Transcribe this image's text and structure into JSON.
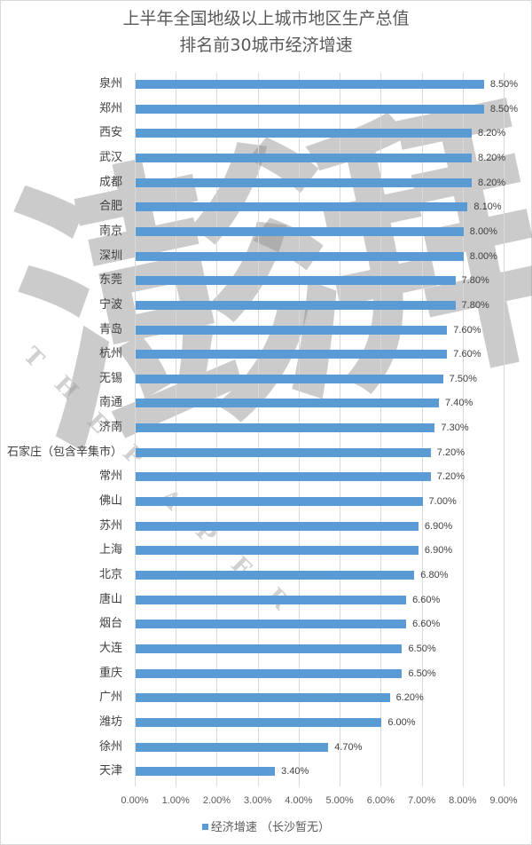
{
  "title": {
    "line1": "上半年全国地级以上城市地区生产总值",
    "line2": "排名前30城市经济增速"
  },
  "watermark": {
    "main": "澎湃",
    "letters": [
      "T",
      "H",
      "E",
      "P",
      "A",
      "P",
      "E",
      "R"
    ]
  },
  "legend": {
    "label": "经济增速  （长沙暂无）",
    "color": "#5b9bd5"
  },
  "chart_data": {
    "type": "bar",
    "orientation": "horizontal",
    "title": "上半年全国地级以上城市地区生产总值 排名前30城市经济增速",
    "xlabel": "",
    "ylabel": "",
    "xlim": [
      0,
      9
    ],
    "x_ticks": [
      "0.00%",
      "1.00%",
      "2.00%",
      "3.00%",
      "4.00%",
      "5.00%",
      "6.00%",
      "7.00%",
      "8.00%",
      "9.00%"
    ],
    "grid": true,
    "legend_position": "bottom",
    "series": [
      {
        "name": "经济增速  （长沙暂无）",
        "color": "#5b9bd5",
        "values": [
          8.5,
          8.5,
          8.2,
          8.2,
          8.2,
          8.1,
          8.0,
          8.0,
          7.8,
          7.8,
          7.6,
          7.6,
          7.5,
          7.4,
          7.3,
          7.2,
          7.2,
          7.0,
          6.9,
          6.9,
          6.8,
          6.6,
          6.6,
          6.5,
          6.5,
          6.2,
          6.0,
          4.7,
          3.4
        ]
      }
    ],
    "categories": [
      "泉州",
      "郑州",
      "西安",
      "武汉",
      "成都",
      "合肥",
      "南京",
      "深圳",
      "东莞",
      "宁波",
      "青岛",
      "杭州",
      "无锡",
      "南通",
      "济南",
      "石家庄（包含辛集市）",
      "常州",
      "佛山",
      "苏州",
      "上海",
      "北京",
      "唐山",
      "烟台",
      "大连",
      "重庆",
      "广州",
      "潍坊",
      "徐州",
      "天津"
    ],
    "labels": [
      "8.50%",
      "8.50%",
      "8.20%",
      "8.20%",
      "8.20%",
      "8.10%",
      "8.00%",
      "8.00%",
      "7.80%",
      "7.80%",
      "7.60%",
      "7.60%",
      "7.50%",
      "7.40%",
      "7.30%",
      "7.20%",
      "7.20%",
      "7.00%",
      "6.90%",
      "6.90%",
      "6.80%",
      "6.60%",
      "6.60%",
      "6.50%",
      "6.50%",
      "6.20%",
      "6.00%",
      "4.70%",
      "3.40%"
    ]
  }
}
